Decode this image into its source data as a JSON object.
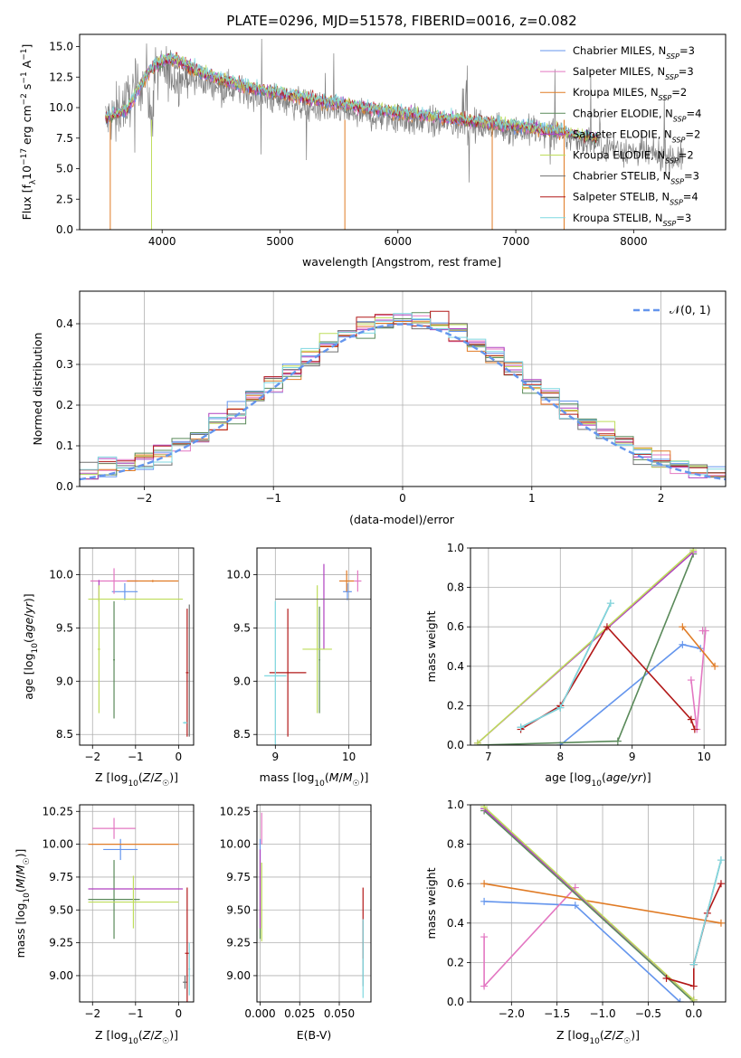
{
  "figure": {
    "title": "PLATE=0296, MJD=51578, FIBERID=0016, z=0.082"
  },
  "colors": {
    "Chabrier MILES": "#6495ed",
    "Salpeter MILES": "#e377c2",
    "Kroupa MILES": "#e07b25",
    "Chabrier ELODIE": "#5a8a5a",
    "Salpeter ELODIE": "#b040c0",
    "Kroupa ELODIE": "#bedd5a",
    "Chabrier STELIB": "#707070",
    "Salpeter STELIB": "#b21818",
    "Kroupa STELIB": "#7fd8e0"
  },
  "chart_data": [
    {
      "id": "spectrum",
      "type": "line",
      "title": "PLATE=0296, MJD=51578, FIBERID=0016, z=0.082",
      "xlabel": "wavelength [Angstrom, rest frame]",
      "ylabel": "Flux [f_λ 10^-17 erg cm^-2 s^-1 A^-1]",
      "xlim": [
        3300,
        8780
      ],
      "ylim": [
        0,
        16
      ],
      "xticks": [
        4000,
        5000,
        6000,
        7000,
        8000
      ],
      "yticks": [
        0.0,
        2.5,
        5.0,
        7.5,
        10.0,
        12.5,
        15.0
      ],
      "xticklabels": [
        "4000",
        "5000",
        "6000",
        "7000",
        "8000"
      ],
      "yticklabels": [
        "0.0",
        "2.5",
        "5.0",
        "7.5",
        "10.0",
        "12.5",
        "15.0"
      ],
      "grid": false,
      "legend_position": "top-right",
      "legend": [
        {
          "model": "Chabrier MILES",
          "nssp": "3"
        },
        {
          "model": "Salpeter MILES",
          "nssp": "3"
        },
        {
          "model": "Kroupa MILES",
          "nssp": "2"
        },
        {
          "model": "Chabrier ELODIE",
          "nssp": "4"
        },
        {
          "model": "Salpeter ELODIE",
          "nssp": "2"
        },
        {
          "model": "Kroupa ELODIE",
          "nssp": "2"
        },
        {
          "model": "Chabrier STELIB",
          "nssp": "3"
        },
        {
          "model": "Salpeter STELIB",
          "nssp": "4"
        },
        {
          "model": "Kroupa STELIB",
          "nssp": "3"
        }
      ],
      "observed_flux": {
        "x": [
          3550,
          3700,
          3850,
          4000,
          4150,
          4300,
          4500,
          4800,
          5000,
          5300,
          5600,
          6000,
          6300,
          6600,
          6900,
          7200,
          7500,
          7800,
          8100,
          8400
        ],
        "y": [
          9.0,
          10.5,
          12.5,
          13.0,
          12.5,
          12.2,
          11.8,
          11.0,
          10.6,
          10.0,
          9.5,
          9.0,
          8.8,
          8.5,
          8.3,
          8.0,
          7.5,
          6.8,
          6.2,
          5.9
        ]
      },
      "model_fit": {
        "x": [
          3500,
          3600,
          3700,
          3800,
          3900,
          4000,
          4100,
          4300,
          4500,
          4800,
          5000,
          5300,
          5600,
          6000,
          6300,
          6600,
          6900,
          7200,
          7500,
          7700
        ],
        "y": [
          9.0,
          9.5,
          9.8,
          11.5,
          13.2,
          13.8,
          14.0,
          13.0,
          12.3,
          11.5,
          11.2,
          10.6,
          10.2,
          9.6,
          9.3,
          8.9,
          8.6,
          8.3,
          7.8,
          7.4
        ]
      }
    },
    {
      "id": "residuals",
      "type": "histogram",
      "xlabel": "(data-model)/error",
      "ylabel": "Normed distribution",
      "xlim": [
        -2.5,
        2.5
      ],
      "ylim": [
        0,
        0.48
      ],
      "xticks": [
        -2,
        -1,
        0,
        1,
        2
      ],
      "yticks": [
        0.0,
        0.1,
        0.2,
        0.3,
        0.4
      ],
      "xticklabels": [
        "−2",
        "−1",
        "0",
        "1",
        "2"
      ],
      "yticklabels": [
        "0.0",
        "0.1",
        "0.2",
        "0.3",
        "0.4"
      ],
      "grid": true,
      "legend_position": "top-right",
      "legend": [
        "𝒩(0, 1)"
      ],
      "reference": {
        "type": "normal",
        "mean": 0,
        "sigma": 1
      }
    },
    {
      "id": "age-vs-Z",
      "type": "scatter",
      "xlabel": "Z [log10(Z/Z☉)]",
      "ylabel": "age  [log10(age/yr)]",
      "xlim": [
        -2.3,
        0.35
      ],
      "ylim": [
        8.4,
        10.25
      ],
      "xticks": [
        -2,
        -1,
        0
      ],
      "yticks": [
        8.5,
        9.0,
        9.5,
        10.0
      ],
      "xticklabels": [
        "−2",
        "−1",
        "0"
      ],
      "yticklabels": [
        "8.5",
        "9.0",
        "9.5",
        "10.0"
      ],
      "grid": true,
      "points": [
        {
          "model": "Chabrier MILES",
          "x": -1.25,
          "xerr": 0.3,
          "y": 9.84,
          "yerr": 0.08
        },
        {
          "model": "Salpeter MILES",
          "x": -1.5,
          "xerr": 0.55,
          "y": 9.94,
          "yerr": 0.12
        },
        {
          "model": "Kroupa MILES",
          "x": -0.6,
          "xerr": 0.6,
          "y": 9.94,
          "yerr": 0.01
        },
        {
          "model": "Chabrier ELODIE",
          "x": -1.5,
          "xerr": 0.02,
          "y": 9.2,
          "yerr": 0.55
        },
        {
          "model": "Salpeter ELODIE",
          "x": -1.85,
          "xerr": 0.0,
          "y": 9.85,
          "yerr": 0.1
        },
        {
          "model": "Kroupa ELODIE",
          "x": -1.85,
          "xerr": 0.03,
          "y": 9.3,
          "yerr": 0.6
        },
        {
          "model": "Chabrier STELIB",
          "x": 0.25,
          "xerr": 0.01,
          "y": 9.1,
          "yerr": 0.62
        },
        {
          "model": "Salpeter STELIB",
          "x": 0.2,
          "xerr": 0.03,
          "y": 9.08,
          "yerr": 0.6
        },
        {
          "model": "Kroupa STELIB",
          "x": 0.15,
          "xerr": 0.05,
          "y": 8.61,
          "yerr": 0.01
        },
        {
          "model": "Kroupa ELODIE",
          "x": -1.0,
          "xerr": 1.1,
          "y": 9.77,
          "yerr": 0.0
        }
      ]
    },
    {
      "id": "age-vs-mass",
      "type": "scatter",
      "xlabel": "mass [log10(M/M☉)]",
      "ylabel": "",
      "xlim": [
        8.75,
        10.3
      ],
      "ylim": [
        8.4,
        10.25
      ],
      "xticks": [
        9,
        10
      ],
      "yticks": [
        8.5,
        9.0,
        9.5,
        10.0
      ],
      "xticklabels": [
        "9",
        "10"
      ],
      "yticklabels": [
        "8.5",
        "9.0",
        "9.5",
        "10.0"
      ],
      "grid": true,
      "points": [
        {
          "model": "Chabrier MILES",
          "x": 9.98,
          "xerr": 0.06,
          "y": 9.84,
          "yerr": 0.08
        },
        {
          "model": "Salpeter MILES",
          "x": 10.12,
          "xerr": 0.05,
          "y": 9.94,
          "yerr": 0.1
        },
        {
          "model": "Kroupa MILES",
          "x": 9.97,
          "xerr": 0.1,
          "y": 9.94,
          "yerr": 0.1
        },
        {
          "model": "Chabrier ELODIE",
          "x": 9.6,
          "xerr": 0.01,
          "y": 9.2,
          "yerr": 0.5
        },
        {
          "model": "Salpeter ELODIE",
          "x": 9.66,
          "xerr": 0.0,
          "y": 9.7,
          "yerr": 0.4
        },
        {
          "model": "Kroupa ELODIE",
          "x": 9.57,
          "xerr": 0.2,
          "y": 9.3,
          "yerr": 0.6
        },
        {
          "model": "Chabrier STELIB",
          "x": 9.7,
          "xerr": 0.7,
          "y": 9.77,
          "yerr": 0.0
        },
        {
          "model": "Salpeter STELIB",
          "x": 9.17,
          "xerr": 0.25,
          "y": 9.08,
          "yerr": 0.6
        },
        {
          "model": "Kroupa STELIB",
          "x": 9.0,
          "xerr": 0.15,
          "y": 9.05,
          "yerr": 0.7
        }
      ]
    },
    {
      "id": "weight-vs-age",
      "type": "line",
      "xlabel": "age  [log10(age/yr)]",
      "ylabel": "mass weight",
      "xlim": [
        6.75,
        10.3
      ],
      "ylim": [
        0,
        1
      ],
      "xticks": [
        7,
        8,
        9,
        10
      ],
      "yticks": [
        0.0,
        0.2,
        0.4,
        0.6,
        0.8,
        1.0
      ],
      "xticklabels": [
        "7",
        "8",
        "9",
        "10"
      ],
      "yticklabels": [
        "0.0",
        "0.2",
        "0.4",
        "0.6",
        "0.8",
        "1.0"
      ],
      "grid": true,
      "series": [
        {
          "model": "Chabrier MILES",
          "x": [
            8.0,
            9.7,
            9.95
          ],
          "y": [
            0.0,
            0.51,
            0.49
          ]
        },
        {
          "model": "Salpeter MILES",
          "x": [
            9.82,
            9.9,
            10.02,
            9.98
          ],
          "y": [
            0.33,
            0.08,
            0.58,
            0.58
          ]
        },
        {
          "model": "Kroupa MILES",
          "x": [
            9.7,
            10.15
          ],
          "y": [
            0.6,
            0.4
          ]
        },
        {
          "model": "Chabrier ELODIE",
          "x": [
            6.85,
            8.8,
            9.85
          ],
          "y": [
            0.0,
            0.02,
            0.97
          ]
        },
        {
          "model": "Salpeter ELODIE",
          "x": [
            6.85,
            9.85
          ],
          "y": [
            0.01,
            0.98
          ]
        },
        {
          "model": "Kroupa ELODIE",
          "x": [
            6.85,
            9.85
          ],
          "y": [
            0.01,
            0.99
          ]
        },
        {
          "model": "Chabrier STELIB",
          "x": [
            7.45,
            8.0,
            8.7
          ],
          "y": [
            0.09,
            0.19,
            0.72
          ]
        },
        {
          "model": "Salpeter STELIB",
          "x": [
            7.45,
            8.0,
            8.65,
            9.82,
            9.87
          ],
          "y": [
            0.08,
            0.2,
            0.6,
            0.13,
            0.08
          ]
        },
        {
          "model": "Kroupa STELIB",
          "x": [
            7.45,
            8.0,
            8.7
          ],
          "y": [
            0.09,
            0.19,
            0.72
          ]
        }
      ]
    },
    {
      "id": "mass-vs-Z",
      "type": "scatter",
      "xlabel": "Z [log10(Z/Z☉)]",
      "ylabel": "mass [log10(M/M☉)]",
      "xlim": [
        -2.3,
        0.35
      ],
      "ylim": [
        8.8,
        10.3
      ],
      "xticks": [
        -2,
        -1,
        0
      ],
      "yticks": [
        9.0,
        9.25,
        9.5,
        9.75,
        10.0,
        10.25
      ],
      "xticklabels": [
        "−2",
        "−1",
        "0"
      ],
      "yticklabels": [
        "9.00",
        "9.25",
        "9.50",
        "9.75",
        "10.00",
        "10.25"
      ],
      "grid": true,
      "points": [
        {
          "model": "Chabrier MILES",
          "x": -1.35,
          "xerr": 0.4,
          "y": 9.96,
          "yerr": 0.08
        },
        {
          "model": "Salpeter MILES",
          "x": -1.5,
          "xerr": 0.5,
          "y": 10.12,
          "yerr": 0.08
        },
        {
          "model": "Kroupa MILES",
          "x": -1.05,
          "xerr": 1.05,
          "y": 10.0,
          "yerr": 0.0
        },
        {
          "model": "Chabrier ELODIE",
          "x": -1.5,
          "xerr": 0.6,
          "y": 9.58,
          "yerr": 0.3
        },
        {
          "model": "Salpeter ELODIE",
          "x": -1.0,
          "xerr": 1.1,
          "y": 9.66,
          "yerr": 0.0
        },
        {
          "model": "Kroupa ELODIE",
          "x": -1.05,
          "xerr": 1.05,
          "y": 9.56,
          "yerr": 0.2
        },
        {
          "model": "Chabrier STELIB",
          "x": 0.15,
          "xerr": 0.05,
          "y": 8.95,
          "yerr": 0.05
        },
        {
          "model": "Salpeter STELIB",
          "x": 0.2,
          "xerr": 0.05,
          "y": 9.17,
          "yerr": 0.5
        },
        {
          "model": "Kroupa STELIB",
          "x": 0.25,
          "xerr": 0.02,
          "y": 9.05,
          "yerr": 0.2
        }
      ]
    },
    {
      "id": "mass-vs-ebv",
      "type": "scatter",
      "xlabel": "E(B-V)",
      "ylabel": "",
      "xlim": [
        -0.002,
        0.07
      ],
      "ylim": [
        8.8,
        10.3
      ],
      "xticks": [
        0.0,
        0.025,
        0.05
      ],
      "yticks": [
        9.0,
        9.25,
        9.5,
        9.75,
        10.0,
        10.25
      ],
      "xticklabels": [
        "0.000",
        "0.025",
        "0.050"
      ],
      "yticklabels": [
        "9.00",
        "9.25",
        "9.50",
        "9.75",
        "10.00",
        "10.25"
      ],
      "grid": true,
      "points": [
        {
          "model": "Chabrier MILES",
          "x": 0.0,
          "xerr": 0.0,
          "y": 9.96,
          "yerr": 0.08
        },
        {
          "model": "Salpeter MILES",
          "x": 0.001,
          "xerr": 0.0,
          "y": 10.12,
          "yerr": 0.12
        },
        {
          "model": "Kroupa MILES",
          "x": 0.0,
          "xerr": 0.0,
          "y": 10.0,
          "yerr": 0.0
        },
        {
          "model": "Chabrier ELODIE",
          "x": 0.0,
          "xerr": 0.0,
          "y": 9.58,
          "yerr": 0.3
        },
        {
          "model": "Salpeter ELODIE",
          "x": 0.0,
          "xerr": 0.0,
          "y": 9.66,
          "yerr": 0.3
        },
        {
          "model": "Kroupa ELODIE",
          "x": 0.001,
          "xerr": 0.0,
          "y": 9.56,
          "yerr": 0.3
        },
        {
          "model": "Chabrier STELIB",
          "x": 0.065,
          "xerr": 0.0,
          "y": 9.17,
          "yerr": 0.25
        },
        {
          "model": "Salpeter STELIB",
          "x": 0.065,
          "xerr": 0.0,
          "y": 9.4,
          "yerr": 0.27
        },
        {
          "model": "Kroupa STELIB",
          "x": 0.065,
          "xerr": 0.0,
          "y": 9.13,
          "yerr": 0.3
        }
      ]
    },
    {
      "id": "weight-vs-Z",
      "type": "line",
      "xlabel": "Z [log10(Z/Z☉)]",
      "ylabel": "mass weight",
      "xlim": [
        -2.45,
        0.35
      ],
      "ylim": [
        0,
        1
      ],
      "xticks": [
        -2.0,
        -1.5,
        -1.0,
        -0.5,
        0.0
      ],
      "yticks": [
        0.0,
        0.2,
        0.4,
        0.6,
        0.8,
        1.0
      ],
      "xticklabels": [
        "−2.0",
        "−1.5",
        "−1.0",
        "−0.5",
        "0.0"
      ],
      "yticklabels": [
        "0.0",
        "0.2",
        "0.4",
        "0.6",
        "0.8",
        "1.0"
      ],
      "grid": true,
      "series": [
        {
          "model": "Chabrier MILES",
          "x": [
            -2.3,
            -1.3,
            -0.15
          ],
          "y": [
            0.51,
            0.49,
            0.0
          ]
        },
        {
          "model": "Salpeter MILES",
          "x": [
            -2.3,
            -2.3,
            -1.3
          ],
          "y": [
            0.33,
            0.08,
            0.58
          ]
        },
        {
          "model": "Kroupa MILES",
          "x": [
            -2.3,
            0.3
          ],
          "y": [
            0.6,
            0.4
          ]
        },
        {
          "model": "Chabrier ELODIE",
          "x": [
            -2.3,
            0.0
          ],
          "y": [
            0.97,
            0.0
          ]
        },
        {
          "model": "Salpeter ELODIE",
          "x": [
            -2.3,
            0.0
          ],
          "y": [
            0.98,
            0.01
          ]
        },
        {
          "model": "Kroupa ELODIE",
          "x": [
            -2.3,
            0.0
          ],
          "y": [
            0.99,
            0.01
          ]
        },
        {
          "model": "Chabrier STELIB",
          "x": [
            0.0,
            0.3
          ],
          "y": [
            0.19,
            0.72
          ]
        },
        {
          "model": "Salpeter STELIB",
          "x": [
            -0.3,
            0.0,
            0.0,
            0.15,
            0.3
          ],
          "y": [
            0.12,
            0.08,
            0.19,
            0.45,
            0.6
          ]
        },
        {
          "model": "Kroupa STELIB",
          "x": [
            0.0,
            0.3
          ],
          "y": [
            0.19,
            0.72
          ]
        }
      ]
    }
  ]
}
